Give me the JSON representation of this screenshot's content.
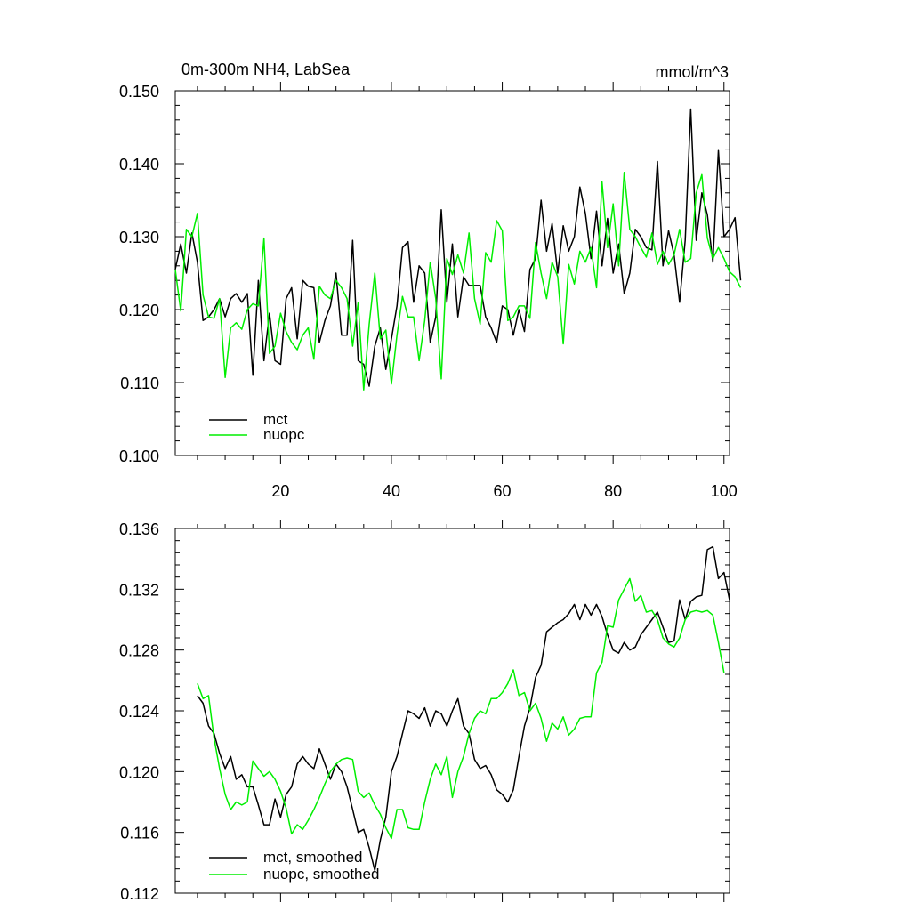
{
  "chart_data": [
    {
      "type": "line",
      "title_left": "0m-300m NH4, LabSea",
      "title_right": "mmol/m^3",
      "xlim": [
        1,
        101
      ],
      "ylim": [
        0.1,
        0.15
      ],
      "x_ticks": [
        20,
        40,
        60,
        80,
        100
      ],
      "x_tick_labels": [
        "20",
        "40",
        "60",
        "80",
        "100"
      ],
      "y_ticks": [
        0.1,
        0.11,
        0.12,
        0.13,
        0.14,
        0.15
      ],
      "y_tick_labels": [
        "0.100",
        "0.110",
        "0.120",
        "0.130",
        "0.140",
        "0.150"
      ],
      "x_start": 1,
      "series": [
        {
          "name": "mct",
          "color": "#000000",
          "values": [
            0.1255,
            0.129,
            0.125,
            0.1305,
            0.1265,
            0.1185,
            0.119,
            0.12,
            0.1215,
            0.119,
            0.1215,
            0.1222,
            0.121,
            0.1222,
            0.111,
            0.124,
            0.113,
            0.1195,
            0.113,
            0.1125,
            0.1215,
            0.123,
            0.116,
            0.124,
            0.1232,
            0.123,
            0.1155,
            0.1185,
            0.1205,
            0.125,
            0.1165,
            0.1165,
            0.1295,
            0.113,
            0.1125,
            0.1095,
            0.115,
            0.1175,
            0.1118,
            0.116,
            0.1205,
            0.1285,
            0.1293,
            0.121,
            0.126,
            0.125,
            0.1155,
            0.119,
            0.1337,
            0.121,
            0.129,
            0.119,
            0.1245,
            0.1233,
            0.1233,
            0.1233,
            0.119,
            0.1175,
            0.1155,
            0.1205,
            0.12,
            0.1165,
            0.12,
            0.117,
            0.1255,
            0.127,
            0.135,
            0.128,
            0.1318,
            0.125,
            0.1315,
            0.128,
            0.13,
            0.1368,
            0.1332,
            0.127,
            0.1335,
            0.126,
            0.1325,
            0.125,
            0.129,
            0.1222,
            0.125,
            0.131,
            0.13,
            0.1285,
            0.1282,
            0.1403,
            0.126,
            0.1308,
            0.1275,
            0.121,
            0.1295,
            0.1475,
            0.1295,
            0.136,
            0.133,
            0.1265,
            0.1418,
            0.13,
            0.131,
            0.1326,
            0.124
          ]
        },
        {
          "name": "nuopc",
          "color": "#00ee00",
          "values": [
            0.1255,
            0.1198,
            0.131,
            0.13,
            0.1332,
            0.122,
            0.119,
            0.1188,
            0.1215,
            0.1107,
            0.1175,
            0.1182,
            0.1173,
            0.12,
            0.1208,
            0.1205,
            0.1298,
            0.114,
            0.115,
            0.1195,
            0.117,
            0.1155,
            0.1145,
            0.1165,
            0.1175,
            0.1132,
            0.1232,
            0.122,
            0.1215,
            0.124,
            0.123,
            0.1215,
            0.115,
            0.121,
            0.109,
            0.118,
            0.125,
            0.116,
            0.1172,
            0.1098,
            0.1165,
            0.1218,
            0.119,
            0.119,
            0.113,
            0.1185,
            0.1265,
            0.1215,
            0.1105,
            0.127,
            0.1248,
            0.1275,
            0.125,
            0.1305,
            0.1215,
            0.118,
            0.1278,
            0.1265,
            0.1322,
            0.1308,
            0.1185,
            0.119,
            0.1205,
            0.1205,
            0.1188,
            0.1292,
            0.125,
            0.1215,
            0.1265,
            0.1245,
            0.1153,
            0.1262,
            0.1235,
            0.128,
            0.1265,
            0.1285,
            0.123,
            0.1375,
            0.1285,
            0.1345,
            0.126,
            0.1388,
            0.131,
            0.13,
            0.1285,
            0.1272,
            0.1305,
            0.1262,
            0.128,
            0.1262,
            0.1275,
            0.131,
            0.1265,
            0.127,
            0.136,
            0.1385,
            0.1298,
            0.127,
            0.1285,
            0.127,
            0.1252,
            0.1245,
            0.123
          ]
        }
      ],
      "legend": [
        "mct",
        "nuopc"
      ],
      "legend_position": "bottom-left"
    },
    {
      "type": "line",
      "xlim": [
        1,
        101
      ],
      "ylim": [
        0.112,
        0.136
      ],
      "x_ticks": [
        20,
        40,
        60,
        80,
        100
      ],
      "y_ticks": [
        0.112,
        0.116,
        0.12,
        0.124,
        0.128,
        0.132,
        0.136
      ],
      "y_tick_labels": [
        "0.112",
        "0.116",
        "0.120",
        "0.124",
        "0.128",
        "0.132",
        "0.136"
      ],
      "x_start": 5,
      "series": [
        {
          "name": "mct, smoothed",
          "color": "#000000",
          "values": [
            0.125,
            0.1245,
            0.123,
            0.1225,
            0.1212,
            0.1202,
            0.121,
            0.1195,
            0.1198,
            0.119,
            0.119,
            0.1178,
            0.1165,
            0.1165,
            0.1182,
            0.117,
            0.1185,
            0.119,
            0.1205,
            0.121,
            0.1205,
            0.1202,
            0.1215,
            0.1205,
            0.1195,
            0.1205,
            0.12,
            0.119,
            0.1175,
            0.116,
            0.1162,
            0.115,
            0.1135,
            0.1155,
            0.117,
            0.12,
            0.121,
            0.1225,
            0.124,
            0.1238,
            0.1235,
            0.1242,
            0.123,
            0.124,
            0.1238,
            0.123,
            0.124,
            0.1248,
            0.123,
            0.1225,
            0.1208,
            0.1202,
            0.1204,
            0.1198,
            0.1188,
            0.1185,
            0.118,
            0.1188,
            0.121,
            0.123,
            0.1242,
            0.1262,
            0.127,
            0.1292,
            0.1295,
            0.1298,
            0.13,
            0.1304,
            0.131,
            0.13,
            0.131,
            0.1303,
            0.131,
            0.1302,
            0.129,
            0.128,
            0.1278,
            0.1285,
            0.128,
            0.1282,
            0.129,
            0.1295,
            0.13,
            0.1305,
            0.1295,
            0.1285,
            0.1286,
            0.1313,
            0.13,
            0.1312,
            0.1315,
            0.1316,
            0.1346,
            0.1348,
            0.1327,
            0.1331,
            0.1313
          ]
        },
        {
          "name": "nuopc, smoothed",
          "color": "#00ee00",
          "values": [
            0.1258,
            0.1248,
            0.125,
            0.1222,
            0.1202,
            0.1185,
            0.1175,
            0.118,
            0.1178,
            0.118,
            0.1207,
            0.1202,
            0.1197,
            0.12,
            0.1195,
            0.1187,
            0.1176,
            0.1159,
            0.1165,
            0.1162,
            0.1168,
            0.1175,
            0.1183,
            0.1192,
            0.12,
            0.1205,
            0.1208,
            0.1209,
            0.1208,
            0.1187,
            0.1183,
            0.1186,
            0.1178,
            0.1172,
            0.1163,
            0.1156,
            0.1175,
            0.1175,
            0.1163,
            0.1162,
            0.1162,
            0.118,
            0.1195,
            0.1205,
            0.1198,
            0.121,
            0.1183,
            0.12,
            0.121,
            0.1225,
            0.1235,
            0.124,
            0.1238,
            0.1248,
            0.1248,
            0.1252,
            0.1258,
            0.1267,
            0.125,
            0.1252,
            0.124,
            0.1245,
            0.1235,
            0.122,
            0.1232,
            0.1228,
            0.1236,
            0.1224,
            0.1228,
            0.1235,
            0.1236,
            0.1236,
            0.1265,
            0.1272,
            0.1296,
            0.1295,
            0.1313,
            0.132,
            0.1327,
            0.1312,
            0.1316,
            0.1305,
            0.1306,
            0.13,
            0.1288,
            0.1284,
            0.1282,
            0.1288,
            0.13,
            0.1305,
            0.1306,
            0.1305,
            0.1306,
            0.1303,
            0.1285,
            0.1265
          ]
        }
      ],
      "legend": [
        "mct, smoothed",
        "nuopc, smoothed"
      ],
      "legend_position": "bottom-left"
    }
  ]
}
